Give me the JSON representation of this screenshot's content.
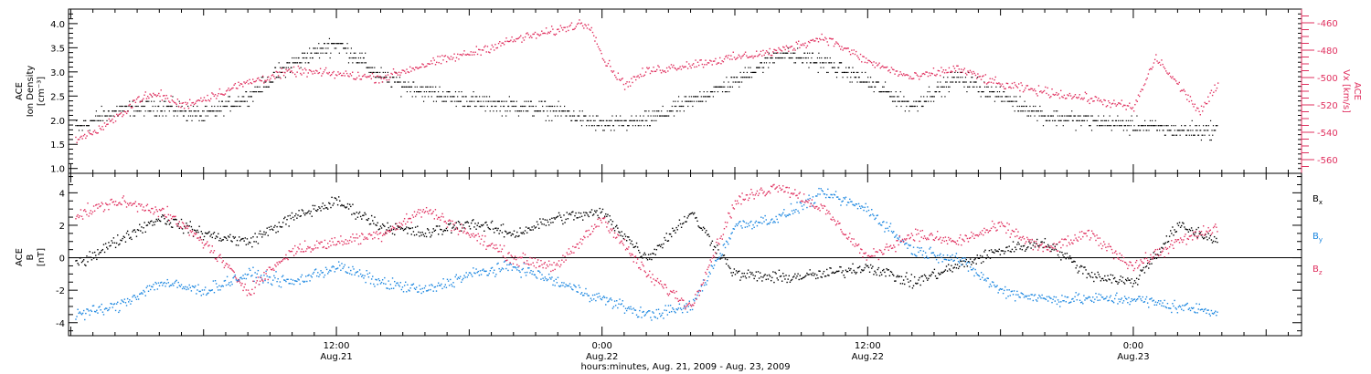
{
  "colors": {
    "black": "#000000",
    "pink": "#e0305f",
    "blue": "#1a86e0"
  },
  "chart_data": [
    {
      "type": "scatter",
      "panel": "top",
      "title": "",
      "ylabel_left": [
        "ACE",
        "Ion Density",
        "[cm⁻³]"
      ],
      "ylabel_right": [
        "ACE",
        "Vx [km/s]"
      ],
      "ylim_left": [
        0.9,
        4.3
      ],
      "yticks_left": [
        "1.0",
        "1.5",
        "2.0",
        "2.5",
        "3.0",
        "3.5",
        "4.0"
      ],
      "ylim_right": [
        -570,
        -450
      ],
      "yticks_right": [
        "-460",
        "-480",
        "-500",
        "-520",
        "-540",
        "-560"
      ],
      "grid": false,
      "series": [
        {
          "axis": "left",
          "color": "#000000",
          "x_hours": [
            0,
            2,
            4,
            6,
            8,
            10,
            12,
            13,
            14,
            16,
            18,
            20,
            22,
            24,
            26,
            28,
            30,
            32,
            34,
            36,
            38,
            40,
            42,
            44,
            46,
            48,
            50,
            52
          ],
          "values": [
            1.8,
            2.2,
            2.3,
            2.1,
            2.5,
            3.2,
            3.6,
            3.3,
            2.9,
            2.6,
            2.4,
            2.3,
            2.2,
            1.9,
            2.0,
            2.4,
            2.8,
            3.4,
            3.2,
            2.8,
            2.3,
            2.9,
            2.5,
            2.1,
            2.0,
            1.9,
            1.8,
            1.8
          ]
        },
        {
          "axis": "right",
          "color": "#e0305f",
          "x_hours": [
            0,
            1,
            2,
            3,
            4,
            5,
            6,
            8,
            10,
            12,
            14,
            16,
            18,
            20,
            22,
            23,
            23.5,
            24,
            25,
            26,
            28,
            30,
            32,
            34,
            36,
            38,
            40,
            42,
            44,
            46,
            48,
            49,
            50,
            51,
            52
          ],
          "values": [
            -545,
            -540,
            -530,
            -515,
            -512,
            -520,
            -515,
            -503,
            -495,
            -497,
            -500,
            -490,
            -482,
            -472,
            -465,
            -460,
            -462,
            -485,
            -505,
            -495,
            -490,
            -485,
            -480,
            -470,
            -488,
            -500,
            -493,
            -505,
            -510,
            -515,
            -522,
            -485,
            -505,
            -525,
            -500
          ]
        }
      ]
    },
    {
      "type": "scatter",
      "panel": "bottom",
      "title": "",
      "ylabel_left": [
        "ACE",
        "B",
        "[nT]"
      ],
      "ylim": [
        -4.8,
        5.2
      ],
      "yticks": [
        "4",
        "2",
        "0",
        "-2",
        "-4"
      ],
      "zero_line": true,
      "grid": false,
      "legend": "right",
      "series": [
        {
          "name": "Bx",
          "name_base": "B",
          "name_sub": "x",
          "color": "#000000",
          "x_hours": [
            0,
            2,
            4,
            6,
            8,
            10,
            12,
            14,
            16,
            18,
            20,
            22,
            24,
            26,
            28,
            30,
            32,
            34,
            36,
            38,
            40,
            42,
            44,
            46,
            48,
            50,
            52
          ],
          "values": [
            -0.5,
            1.0,
            2.5,
            1.5,
            1.0,
            2.5,
            3.5,
            2.0,
            1.5,
            2.2,
            1.5,
            2.5,
            2.8,
            0.0,
            2.8,
            -1.0,
            -1.2,
            -1.0,
            -0.5,
            -1.5,
            -0.5,
            0.5,
            1.0,
            -1.0,
            -1.5,
            2.0,
            1.0
          ]
        },
        {
          "name": "By",
          "name_base": "B",
          "name_sub": "y",
          "color": "#1a86e0",
          "x_hours": [
            0,
            2,
            4,
            6,
            8,
            10,
            12,
            14,
            16,
            18,
            20,
            22,
            24,
            26,
            28,
            30,
            32,
            34,
            36,
            38,
            40,
            42,
            44,
            46,
            48,
            50,
            52
          ],
          "values": [
            -3.5,
            -3.0,
            -1.5,
            -2.0,
            -1.0,
            -1.5,
            -0.5,
            -1.5,
            -2.0,
            -1.0,
            -0.5,
            -1.5,
            -2.5,
            -3.5,
            -3.0,
            2.0,
            2.5,
            4.0,
            3.0,
            0.5,
            0.0,
            -2.0,
            -2.5,
            -2.5,
            -2.5,
            -3.0,
            -3.3
          ]
        },
        {
          "name": "Bz",
          "name_base": "B",
          "name_sub": "z",
          "color": "#e0305f",
          "x_hours": [
            0,
            2,
            4,
            6,
            8,
            10,
            12,
            14,
            16,
            18,
            20,
            22,
            24,
            26,
            28,
            30,
            32,
            34,
            36,
            38,
            40,
            42,
            44,
            46,
            48,
            50,
            52
          ],
          "values": [
            2.5,
            3.5,
            3.0,
            1.0,
            -2.0,
            0.5,
            1.0,
            1.5,
            3.0,
            1.5,
            0.0,
            -0.5,
            2.5,
            -1.0,
            -3.0,
            3.5,
            4.5,
            3.0,
            0.0,
            1.5,
            1.0,
            2.0,
            0.5,
            1.5,
            -0.5,
            1.0,
            2.0
          ]
        }
      ]
    }
  ],
  "x_axis": {
    "tick_labels": [
      {
        "time": "12:00",
        "date": "Aug.21",
        "hour": 12
      },
      {
        "time": "0:00",
        "date": "Aug.22",
        "hour": 24
      },
      {
        "time": "12:00",
        "date": "Aug.22",
        "hour": 36
      },
      {
        "time": "0:00",
        "date": "Aug.23",
        "hour": 48
      }
    ],
    "xlim_hours": [
      -0.1,
      55.6
    ],
    "xlabel": "hours:minutes, Aug. 21, 2009 - Aug. 23, 2009"
  }
}
